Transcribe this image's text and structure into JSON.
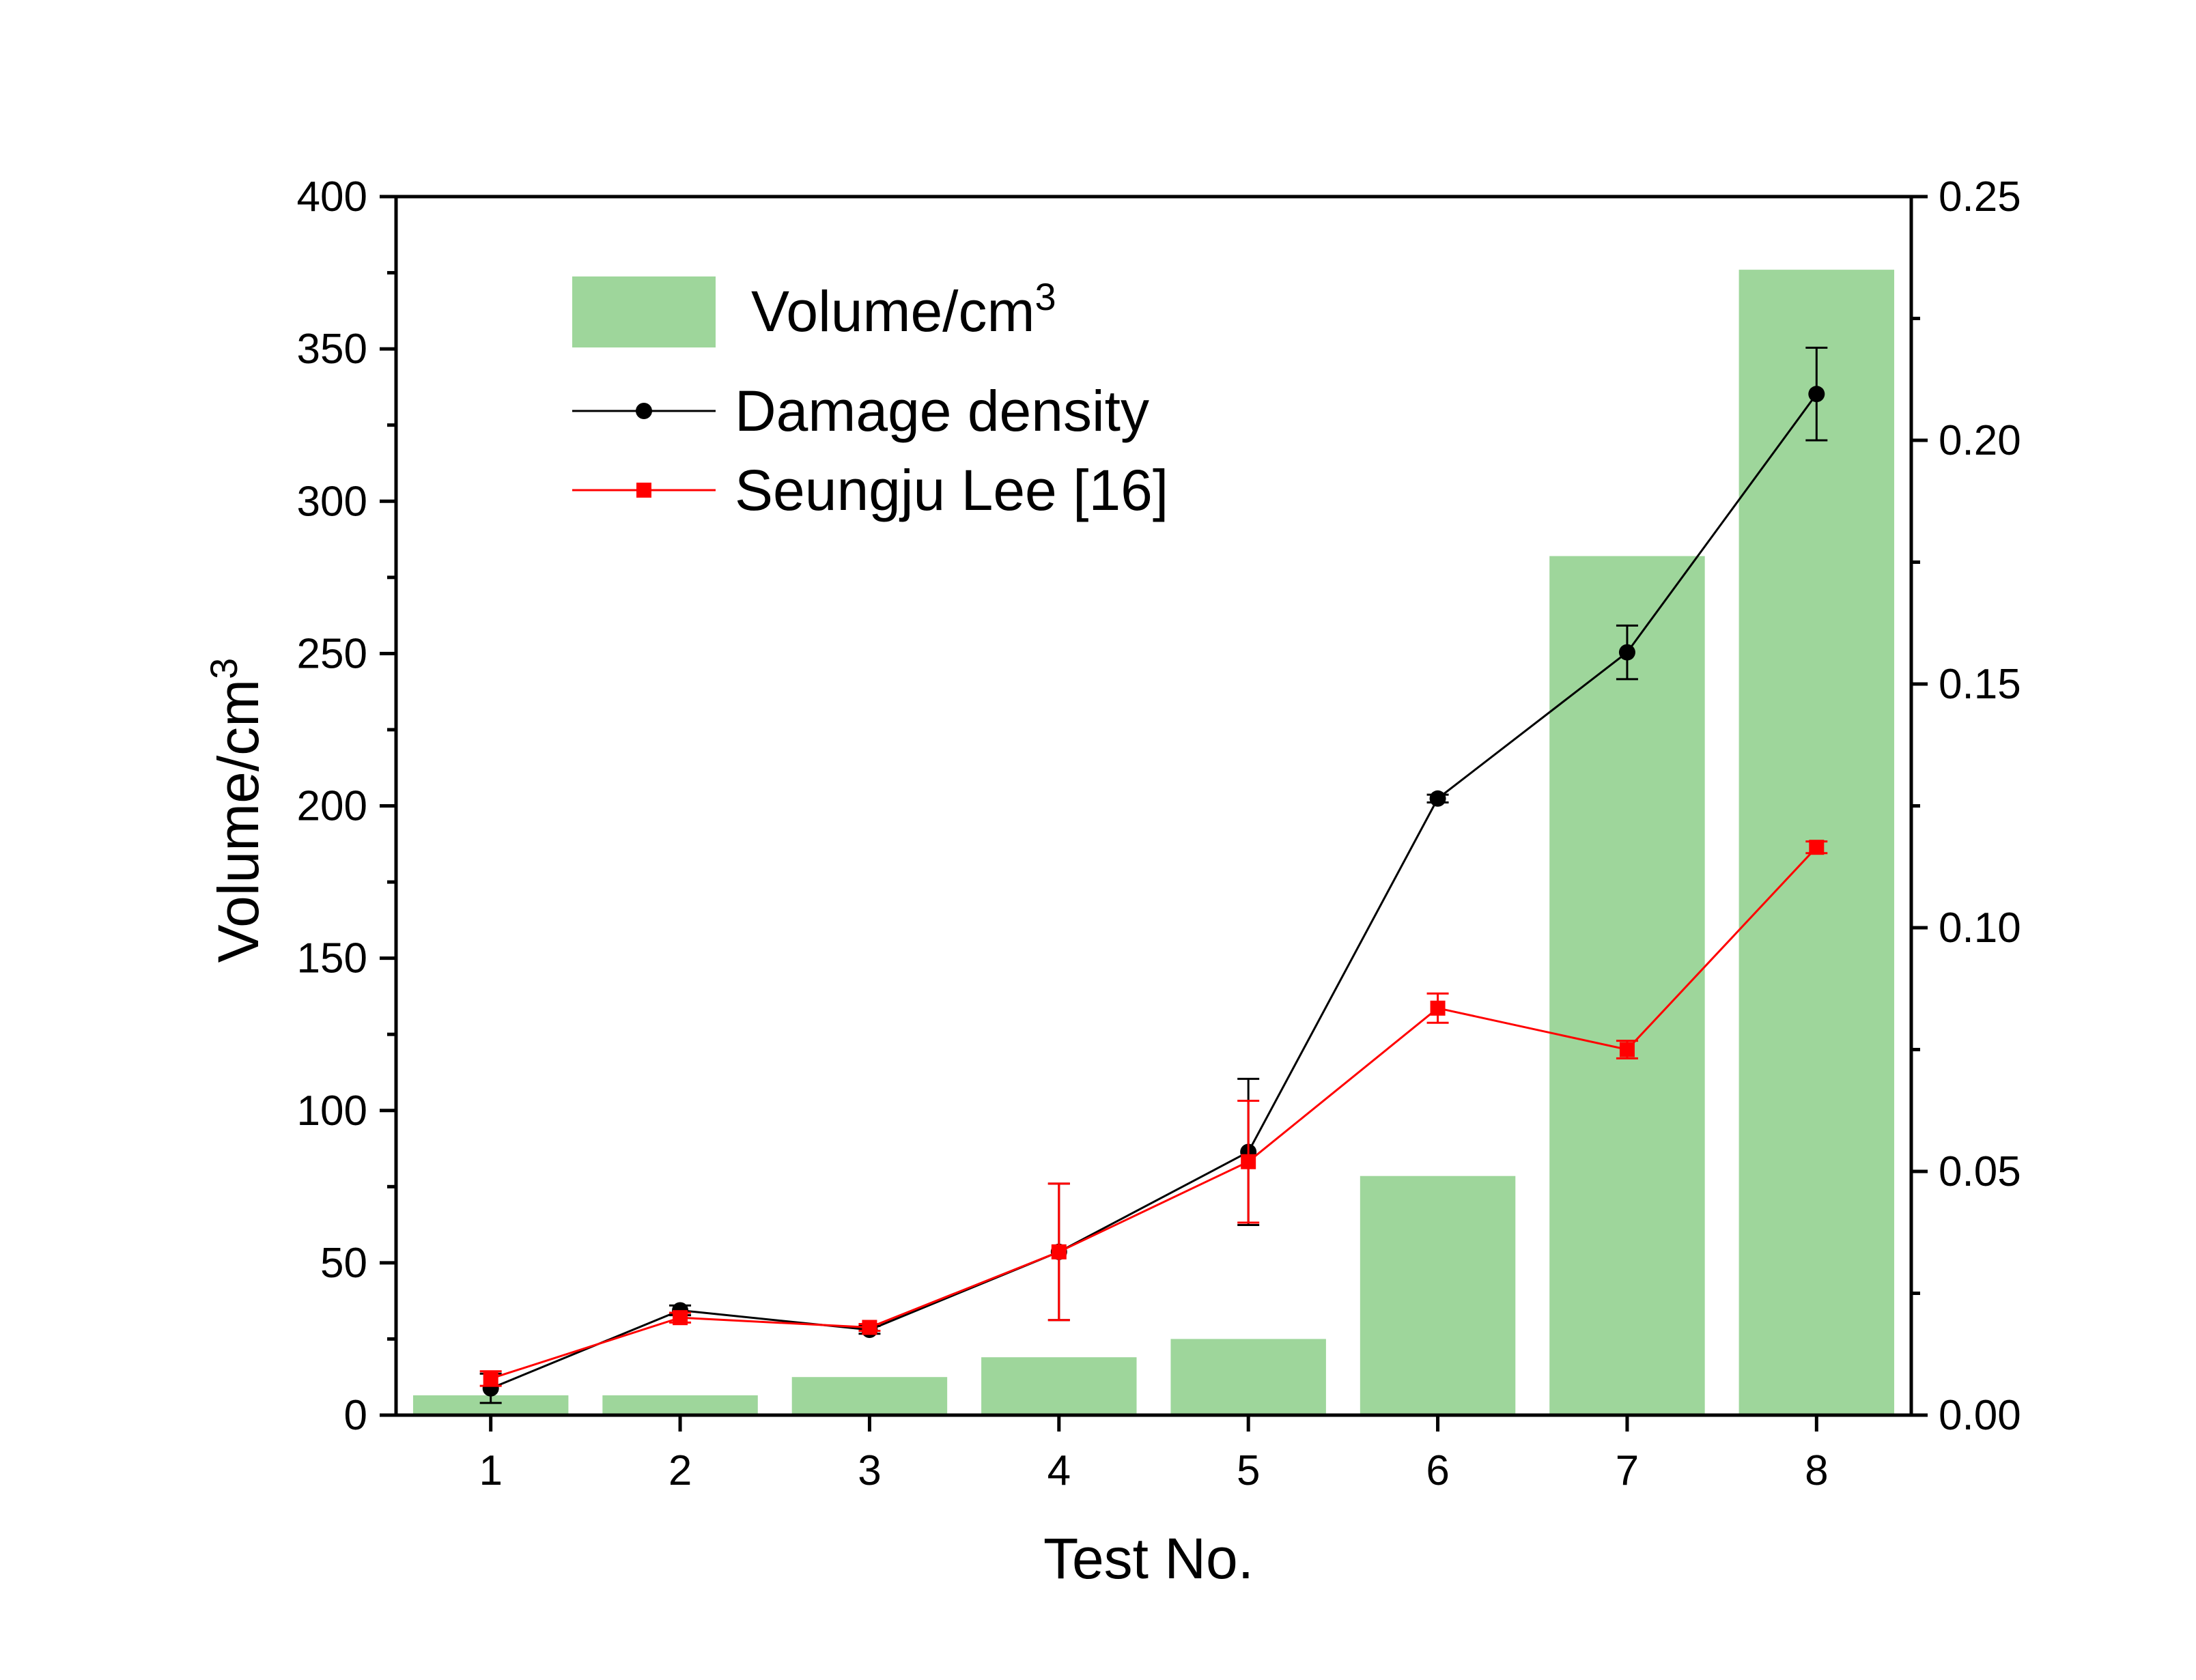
{
  "chart_data": {
    "type": "bar",
    "categories": [
      "1",
      "2",
      "3",
      "4",
      "5",
      "6",
      "7",
      "8"
    ],
    "xlabel": "Test No.",
    "ylabel": "Volume/cm",
    "ylabel_superscript": "3",
    "ylim": [
      0,
      400
    ],
    "yticks": [
      "0",
      "50",
      "100",
      "150",
      "200",
      "250",
      "300",
      "350",
      "400"
    ],
    "y2lim": [
      0,
      0.25
    ],
    "y2ticks": [
      "0.00",
      "0.05",
      "0.10",
      "0.15",
      "0.20",
      "0.25"
    ],
    "legend_placement": "top-left",
    "series": [
      {
        "name": "Volume/cm",
        "name_superscript": "3",
        "type": "bar",
        "axis": "left",
        "color": "#9ed69b",
        "values": [
          6.5,
          6.5,
          12.5,
          19,
          25,
          78.5,
          282,
          376
        ]
      },
      {
        "name": "Damage density",
        "type": "line",
        "marker": "circle",
        "axis": "right",
        "color": "#000000",
        "values": [
          0.0055,
          0.0215,
          0.0175,
          0.0335,
          0.054,
          0.1265,
          0.1565,
          0.2095
        ],
        "errors": [
          0.003,
          0.001,
          0.0008,
          0.014,
          0.015,
          0.0008,
          0.0055,
          0.0095
        ]
      },
      {
        "name": "Seungju Lee [16]",
        "type": "line",
        "marker": "square",
        "axis": "right",
        "color": "#ff0000",
        "values": [
          0.0075,
          0.02,
          0.018,
          0.0335,
          0.052,
          0.0835,
          0.075,
          0.1165
        ],
        "errors": [
          0.0015,
          0.001,
          0.0007,
          0.014,
          0.0125,
          0.003,
          0.0018,
          0.0012
        ]
      }
    ]
  }
}
